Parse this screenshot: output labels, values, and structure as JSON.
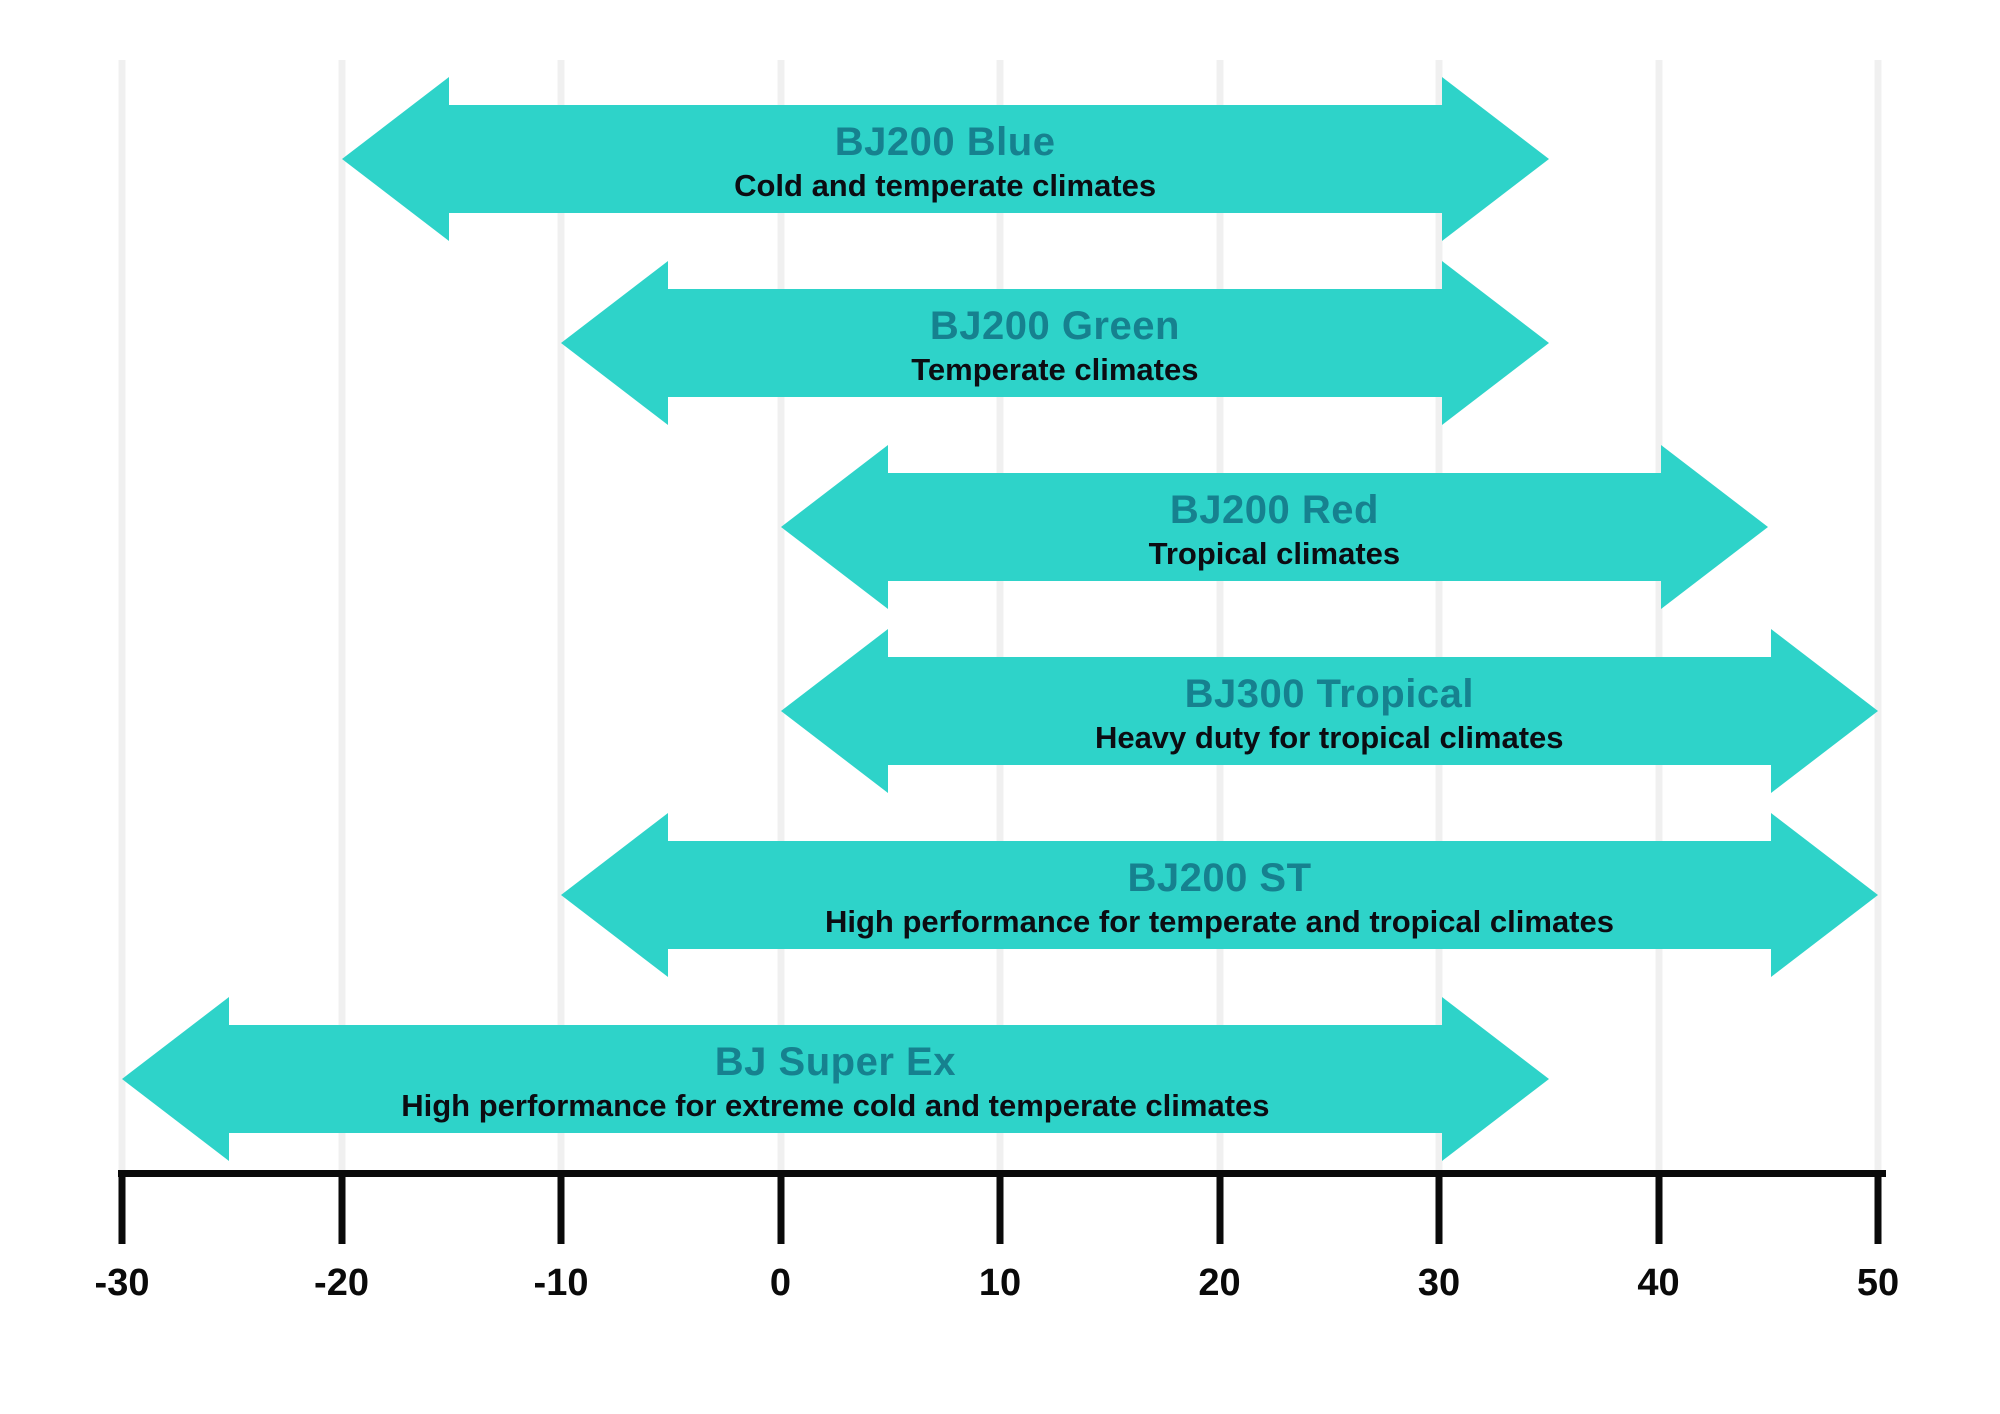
{
  "chart_data": {
    "type": "bar",
    "subtype": "horizontal-double-arrow-ranges",
    "title": "",
    "xlabel": "",
    "ylabel": "",
    "xlim": [
      -30,
      50
    ],
    "x_ticks": [
      -30,
      -20,
      -10,
      0,
      10,
      20,
      30,
      40,
      50
    ],
    "grid": true,
    "legend": false,
    "items": [
      {
        "title": "BJ200 Blue",
        "subtitle": "Cold and temperate climates",
        "min": -20,
        "max": 35
      },
      {
        "title": "BJ200 Green",
        "subtitle": "Temperate climates",
        "min": -10,
        "max": 35
      },
      {
        "title": "BJ200 Red",
        "subtitle": "Tropical climates",
        "min": 0,
        "max": 45
      },
      {
        "title": "BJ300 Tropical",
        "subtitle": "Heavy duty for tropical climates",
        "min": 0,
        "max": 50
      },
      {
        "title": "BJ200 ST",
        "subtitle": "High performance for temperate and tropical climates",
        "min": -10,
        "max": 50
      },
      {
        "title": "BJ Super Ex",
        "subtitle": "High performance for extreme cold and temperate climates",
        "min": -30,
        "max": 35
      }
    ],
    "colors": {
      "arrow_fill": "#2ed3c9",
      "title_text": "#16818f",
      "subtitle_text": "#0c0c12",
      "axis": "#0a0a0a",
      "gridline": "#f0f0f0",
      "background": "#ffffff"
    }
  }
}
